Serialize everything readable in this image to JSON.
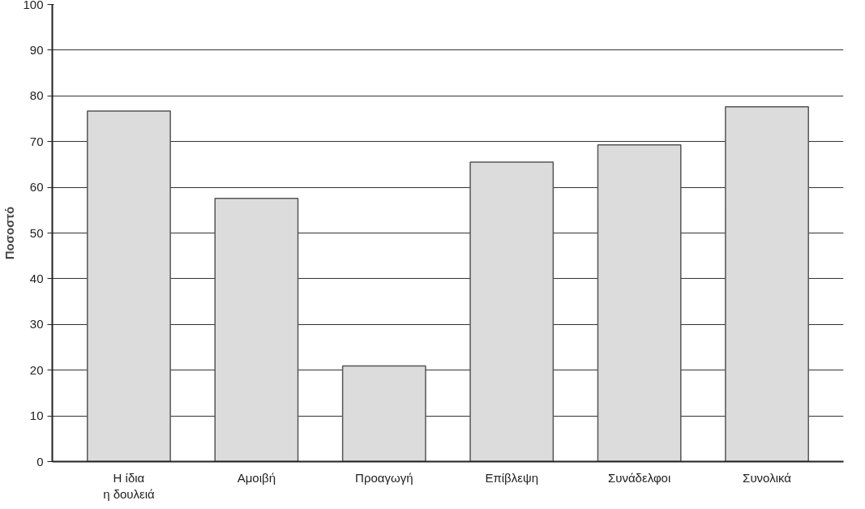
{
  "chart_data": {
    "type": "bar",
    "ylabel": "Ποσοστό",
    "categories": [
      "Η ίδια\nη δουλειά",
      "Αμοιβή",
      "Προαγωγή",
      "Επίβλεψη",
      "Συνάδελφοι",
      "Συνολικά"
    ],
    "values": [
      76.7,
      57.6,
      20.9,
      65.5,
      69.3,
      77.6
    ],
    "color": "#dcdcdc",
    "ylim": [
      0,
      100
    ],
    "yticks": [
      0,
      10,
      20,
      30,
      40,
      50,
      60,
      70,
      80,
      90,
      100
    ],
    "grid": "y"
  }
}
